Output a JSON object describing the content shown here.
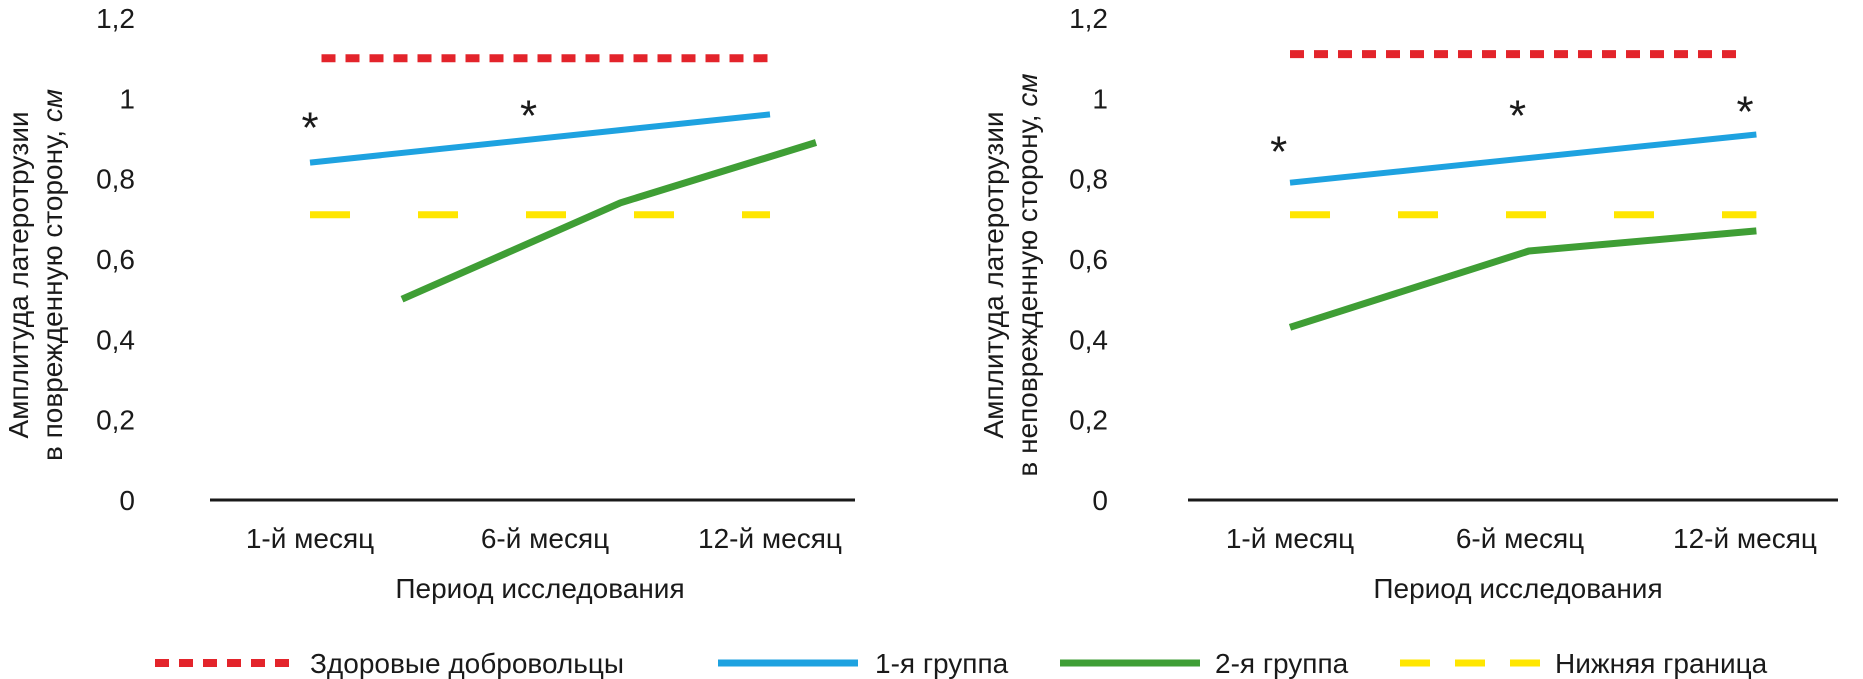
{
  "chart_data": [
    {
      "type": "line",
      "title": "",
      "xlabel": "Период исследования",
      "ylabel_line1": "Амплитуда латеротрузии",
      "ylabel_line2": "в поврежденную сторону,",
      "ylabel_unit": "см",
      "ylim": [
        0,
        1.2
      ],
      "yticks": [
        "0",
        "0,2",
        "0,4",
        "0,6",
        "0,8",
        "1",
        "1,2"
      ],
      "categories": [
        "1-й месяц",
        "6-й месяц",
        "12-й месяц"
      ],
      "series": [
        {
          "name": "Здоровые добровольцы",
          "x": [
            0.05,
            2.0
          ],
          "values": [
            1.1,
            1.1
          ]
        },
        {
          "name": "1-я группа",
          "x": [
            0.0,
            2.0
          ],
          "values": [
            0.84,
            0.96
          ]
        },
        {
          "name": "2-я группа",
          "x": [
            0.4,
            1.35,
            2.2
          ],
          "values": [
            0.5,
            0.74,
            0.89
          ]
        },
        {
          "name": "Нижняя граница",
          "x": [
            0.0,
            2.0
          ],
          "values": [
            0.71,
            0.71
          ]
        }
      ],
      "annotations": [
        {
          "text": "*",
          "x": 0.0,
          "y": 0.96
        },
        {
          "text": "*",
          "x": 0.95,
          "y": 0.99
        }
      ]
    },
    {
      "type": "line",
      "title": "",
      "xlabel": "Период исследования",
      "ylabel_line1": "Амплитуда латеротрузии",
      "ylabel_line2": "в неповрежденную сторону,",
      "ylabel_unit": "см",
      "ylim": [
        0,
        1.2
      ],
      "yticks": [
        "0",
        "0,2",
        "0,4",
        "0,6",
        "0,8",
        "1",
        "1,2"
      ],
      "categories": [
        "1-й месяц",
        "6-й месяц",
        "12-й месяц"
      ],
      "series": [
        {
          "name": "Здоровые добровольцы",
          "x": [
            0.0,
            2.0
          ],
          "values": [
            1.11,
            1.11
          ]
        },
        {
          "name": "1-я группа",
          "x": [
            0.0,
            2.05
          ],
          "values": [
            0.79,
            0.91
          ]
        },
        {
          "name": "2-я группа",
          "x": [
            0.0,
            1.05,
            2.05
          ],
          "values": [
            0.43,
            0.62,
            0.67
          ]
        },
        {
          "name": "Нижняя граница",
          "x": [
            0.0,
            2.05
          ],
          "values": [
            0.71,
            0.71
          ]
        }
      ],
      "annotations": [
        {
          "text": "*",
          "x": -0.05,
          "y": 0.9
        },
        {
          "text": "*",
          "x": 1.0,
          "y": 0.99
        },
        {
          "text": "*",
          "x": 2.0,
          "y": 1.0
        }
      ]
    }
  ],
  "legend": [
    {
      "name": "Здоровые добровольцы",
      "color": "#e3242b",
      "style": "dotted"
    },
    {
      "name": "1-я группа",
      "color": "#1ea2e0",
      "style": "solid"
    },
    {
      "name": "2-я группа",
      "color": "#3f9e35",
      "style": "solid"
    },
    {
      "name": "Нижняя граница",
      "color": "#ffe600",
      "style": "dashed"
    }
  ],
  "colors": {
    "healthy": "#e3242b",
    "group1": "#1ea2e0",
    "group2": "#3f9e35",
    "lower": "#ffe600",
    "axis": "#1a1a1a"
  }
}
